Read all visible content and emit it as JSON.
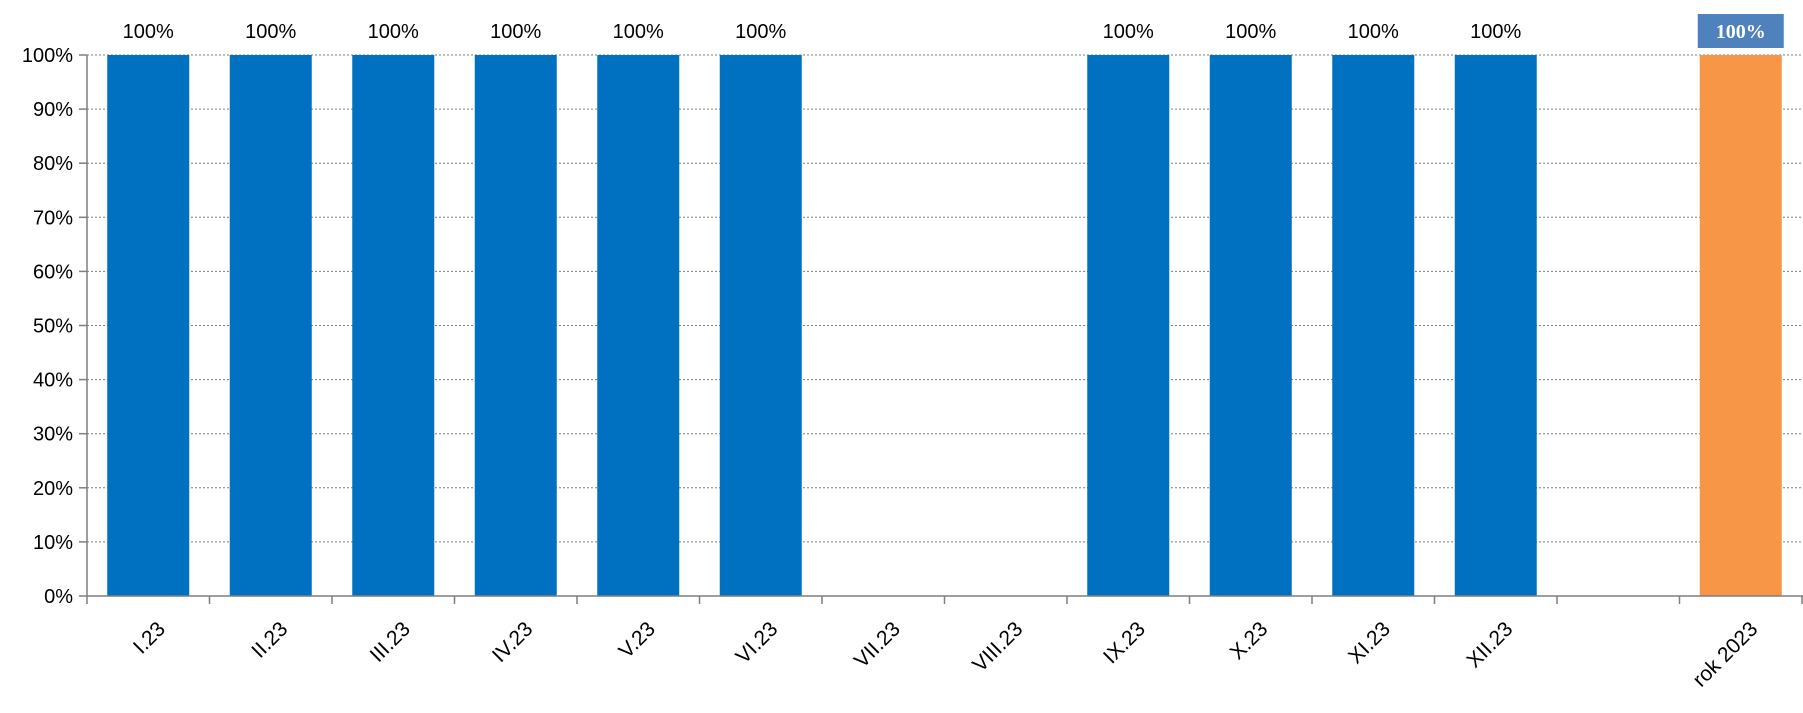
{
  "chart_data": {
    "type": "bar",
    "title": "",
    "xlabel": "",
    "ylabel": "",
    "ylim": [
      0,
      100
    ],
    "y_ticks": [
      "0%",
      "10%",
      "20%",
      "30%",
      "40%",
      "50%",
      "60%",
      "70%",
      "80%",
      "90%",
      "100%"
    ],
    "grid": "horizontal dotted",
    "categories": [
      "I.23",
      "II.23",
      "III.23",
      "IV.23",
      "V.23",
      "VI.23",
      "VII.23",
      "VIII.23",
      "IX.23",
      "X.23",
      "XI.23",
      "XII.23",
      "",
      "rok 2023"
    ],
    "values": [
      100,
      100,
      100,
      100,
      100,
      100,
      null,
      null,
      100,
      100,
      100,
      100,
      null,
      100
    ],
    "data_labels": [
      "100%",
      "100%",
      "100%",
      "100%",
      "100%",
      "100%",
      "",
      "",
      "100%",
      "100%",
      "100%",
      "100%",
      "",
      "100%"
    ],
    "colors": {
      "monthly_bar": "#0070C0",
      "annual_bar": "#F79646",
      "annual_label_box": "#4F81BD",
      "grid": "#7f7f7f",
      "axis": "#7f7f7f"
    }
  }
}
